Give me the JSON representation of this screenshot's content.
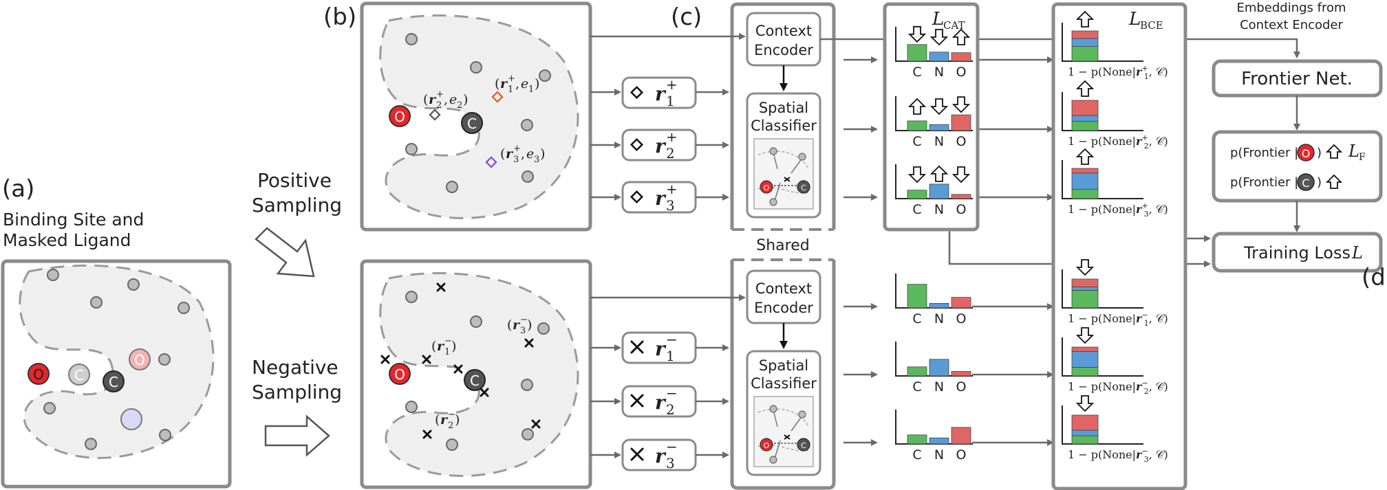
{
  "panels": {
    "a": {
      "tag": "(a)",
      "title_line1": "Binding Site and",
      "title_line2": "Masked Ligand"
    },
    "b": {
      "tag": "(b)"
    },
    "c": {
      "tag": "(c)"
    },
    "d": {
      "tag": "(d)"
    }
  },
  "sampling": {
    "positive_line1": "Positive",
    "positive_line2": "Sampling",
    "negative_line1": "Negative",
    "negative_line2": "Sampling"
  },
  "atoms": {
    "oxygen": "O",
    "carbon": "C"
  },
  "encoder": {
    "line1": "Context",
    "line2": "Encoder"
  },
  "classifier": {
    "line1": "Spatial",
    "line2": "Classifier"
  },
  "shared": "Shared",
  "losses": {
    "cat": "L",
    "cat_sub": "CAT",
    "bce": "L",
    "bce_sub": "BCE",
    "frontier": "L",
    "frontier_sub": "F",
    "training": "Training Loss",
    "training_symbol": "L"
  },
  "embeddings": {
    "line1": "Embeddings from",
    "line2": "Context Encoder"
  },
  "frontier_net": "Frontier Net.",
  "frontier_prob": {
    "prefix": "p(Frontier |",
    "suffix": ")"
  },
  "queries": {
    "positive": [
      {
        "sym": "r",
        "sup": "+",
        "sub": "1",
        "pair": "e",
        "pair_sub": "1"
      },
      {
        "sym": "r",
        "sup": "+",
        "sub": "2",
        "pair": "e",
        "pair_sub": "2"
      },
      {
        "sym": "r",
        "sup": "+",
        "sub": "3",
        "pair": "e",
        "pair_sub": "3"
      }
    ],
    "negative": [
      {
        "sym": "r",
        "sup": "−",
        "sub": "1"
      },
      {
        "sym": "r",
        "sup": "−",
        "sub": "2"
      },
      {
        "sym": "r",
        "sup": "−",
        "sub": "3"
      }
    ]
  },
  "bce_label": {
    "prefix": "1 − p(None|",
    "suffix": ", 𝒞)"
  },
  "chart_data": [
    {
      "type": "bar",
      "categories": [
        "C",
        "N",
        "O"
      ],
      "values": [
        0.55,
        0.3,
        0.28
      ]
    },
    {
      "type": "bar",
      "categories": [
        "C",
        "N",
        "O"
      ],
      "values": [
        0.32,
        0.2,
        0.52
      ]
    },
    {
      "type": "bar",
      "categories": [
        "C",
        "N",
        "O"
      ],
      "values": [
        0.28,
        0.48,
        0.14
      ]
    },
    {
      "type": "bar",
      "categories": [
        "C",
        "N",
        "O"
      ],
      "values": [
        0.78,
        0.15,
        0.35
      ]
    },
    {
      "type": "bar",
      "categories": [
        "C",
        "N",
        "O"
      ],
      "values": [
        0.3,
        0.55,
        0.15
      ]
    },
    {
      "type": "bar",
      "categories": [
        "C",
        "N",
        "O"
      ],
      "values": [
        0.3,
        0.2,
        0.55
      ]
    }
  ],
  "colors": {
    "C": "#5cb85c",
    "N": "#5b9bd5",
    "O": "#e06666",
    "oxygen": "#e8252b",
    "carbon": "#555555"
  }
}
